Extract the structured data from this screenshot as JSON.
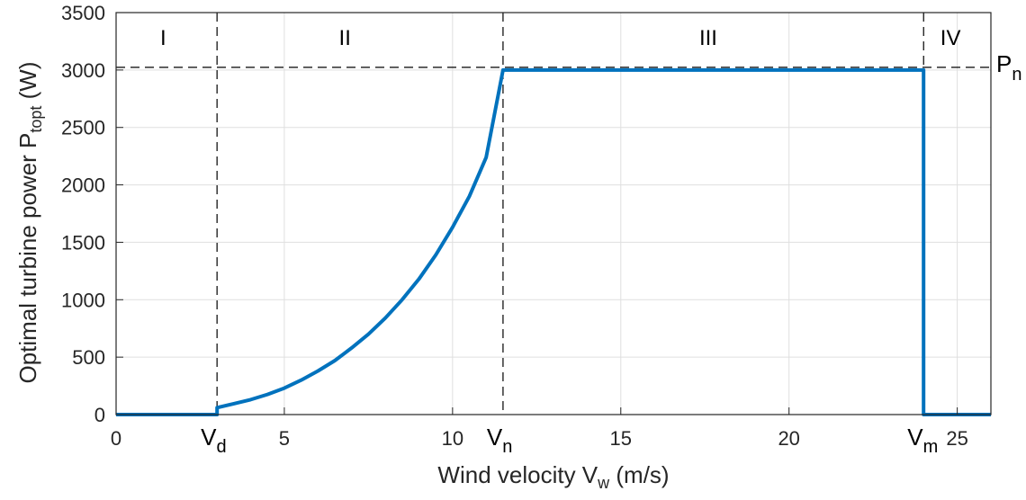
{
  "chart_data": {
    "type": "line",
    "xlabel": "Wind velocity V",
    "xlabel_sub": "w",
    "xlabel_unit": " (m/s)",
    "ylabel": "Optimal turbine power P",
    "ylabel_sub": "topt",
    "ylabel_unit": " (W)",
    "xlim": [
      0,
      26
    ],
    "ylim": [
      0,
      3500
    ],
    "x_ticks": [
      0,
      5,
      10,
      15,
      20,
      25
    ],
    "x_tick_labels": [
      "0",
      "5",
      "10",
      "15",
      "20",
      "25"
    ],
    "y_ticks": [
      0,
      500,
      1000,
      1500,
      2000,
      2500,
      3000,
      3500
    ],
    "y_tick_labels": [
      "0",
      "500",
      "1000",
      "1500",
      "2000",
      "2500",
      "3000",
      "3500"
    ],
    "grid": true,
    "series": [
      {
        "color": "#0072bd",
        "x": [
          0,
          3,
          3,
          3.5,
          4,
          4.5,
          5,
          5.5,
          6,
          6.5,
          7,
          7.5,
          8,
          8.5,
          9,
          9.5,
          10,
          10.5,
          11,
          11.5,
          11.5,
          24,
          24,
          26
        ],
        "y": [
          0,
          0,
          60,
          95,
          130,
          175,
          230,
          300,
          380,
          470,
          580,
          700,
          840,
          1000,
          1180,
          1390,
          1630,
          1900,
          2240,
          3000,
          3000,
          3000,
          0,
          0
        ]
      }
    ],
    "reference_lines": {
      "vertical_x": [
        3,
        11.5,
        24
      ],
      "horizontal_y": 3000
    },
    "regions": [
      {
        "label": "I",
        "x": 1.4
      },
      {
        "label": "II",
        "x": 6.8
      },
      {
        "label": "III",
        "x": 17.6
      },
      {
        "label": "IV",
        "x": 24.8
      }
    ],
    "markers": [
      {
        "base": "V",
        "sub": "d",
        "x": 3
      },
      {
        "base": "V",
        "sub": "n",
        "x": 11.5
      },
      {
        "base": "V",
        "sub": "m",
        "x": 24
      }
    ],
    "pn_label": {
      "base": "P",
      "sub": "n"
    }
  }
}
